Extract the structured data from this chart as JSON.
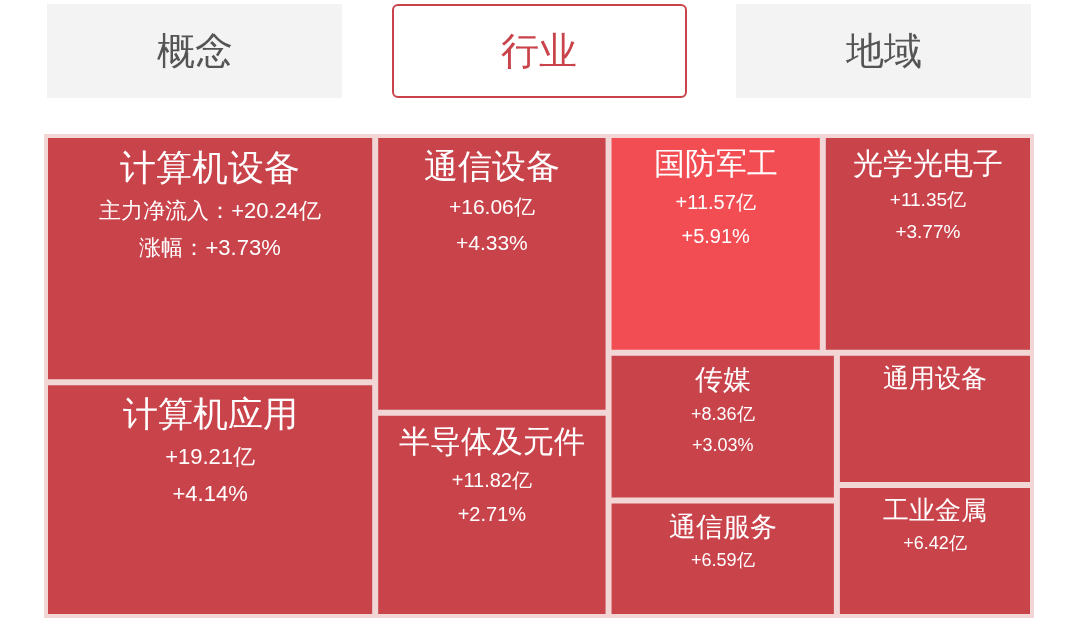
{
  "chart_data": {
    "type": "other",
    "annotations": [
      "概念",
      "行业",
      "地域"
    ],
    "categories": [
      "计算机设备",
      "计算机应用",
      "通信设备",
      "半导体及元件",
      "国防军工",
      "光学光电子",
      "传媒",
      "通信服务",
      "工业金属",
      "通用设备"
    ],
    "series": [
      {
        "values": [
          20.24,
          19.21,
          16.06,
          11.82,
          11.57,
          11.35,
          8.36,
          6.59,
          6.42,
          null
        ],
        "value_labels": [
          "主力净流入：+20.24亿",
          "+19.21亿",
          "+16.06亿",
          "+11.82亿",
          "+11.57亿",
          "+11.35亿",
          "+8.36亿",
          "+6.59亿",
          "+6.42亿",
          null
        ],
        "colors": [
          "#c9434b",
          "#c9434b",
          "#c9434b",
          "#c9434b",
          "#f24d52",
          "#c9434b",
          "#c9434b",
          "#c9434b",
          "#c9434b",
          "#c9434b"
        ]
      },
      {
        "values": [
          3.73,
          4.14,
          4.33,
          2.71,
          5.91,
          3.77,
          3.03,
          null,
          null,
          null
        ],
        "value_labels": [
          "涨幅：+3.73%",
          "+4.14%",
          "+4.33%",
          "+2.71%",
          "+5.91%",
          "+3.77%",
          "+3.03%",
          null,
          null,
          null
        ]
      }
    ]
  }
}
